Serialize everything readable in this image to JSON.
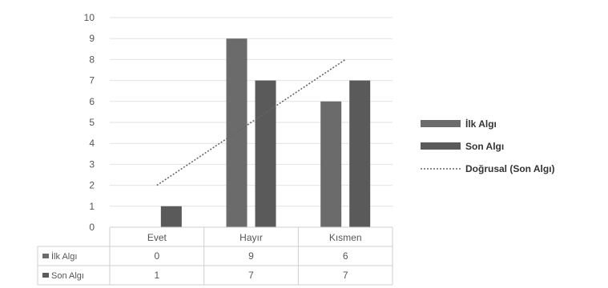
{
  "chart_data": {
    "type": "bar",
    "categories": [
      "Evet",
      "Hayır",
      "Kısmen"
    ],
    "series": [
      {
        "name": "İlk Algı",
        "values": [
          0,
          9,
          6
        ],
        "color": "#6b6b6b"
      },
      {
        "name": "Son Algı",
        "values": [
          1,
          7,
          7
        ],
        "color": "#5a5a5a"
      }
    ],
    "trendline": {
      "name": "Doğrusal (Son Algı)",
      "of_series": "Son Algı",
      "style": "dotted",
      "color": "#666666"
    },
    "yticks": [
      "0",
      "1",
      "2",
      "3",
      "4",
      "5",
      "6",
      "7",
      "8",
      "9",
      "10"
    ],
    "ylim": [
      0,
      10
    ],
    "grid": true,
    "data_table": {
      "rows": [
        {
          "label": "İlk Algı",
          "cells": [
            "0",
            "9",
            "6"
          ]
        },
        {
          "label": "Son Algı",
          "cells": [
            "1",
            "7",
            "7"
          ]
        }
      ]
    },
    "legend": {
      "placement": "right",
      "entries": [
        "İlk Algı",
        "Son Algı",
        "Doğrusal (Son Algı)"
      ]
    }
  }
}
